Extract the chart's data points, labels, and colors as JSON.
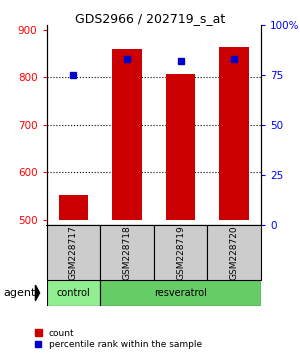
{
  "title": "GDS2966 / 202719_s_at",
  "samples": [
    "GSM228717",
    "GSM228718",
    "GSM228719",
    "GSM228720"
  ],
  "bar_bottom": 500,
  "counts": [
    552,
    860,
    807,
    863
  ],
  "percentile_ranks": [
    75,
    83,
    82,
    83
  ],
  "ylim_left": [
    490,
    910
  ],
  "ylim_right": [
    0,
    100
  ],
  "yticks_left": [
    500,
    600,
    700,
    800,
    900
  ],
  "yticks_right": [
    0,
    25,
    50,
    75,
    100
  ],
  "bar_color": "#cc0000",
  "dot_color": "#0000cc",
  "grid_yticks": [
    600,
    700,
    800
  ],
  "agent_colors": [
    "#90ee90",
    "#66cc66"
  ],
  "background_color": "#ffffff",
  "bar_width": 0.55,
  "sample_box_color": "#cccccc",
  "right_ytick_labels": [
    "0",
    "25",
    "50",
    "75",
    "100%"
  ]
}
